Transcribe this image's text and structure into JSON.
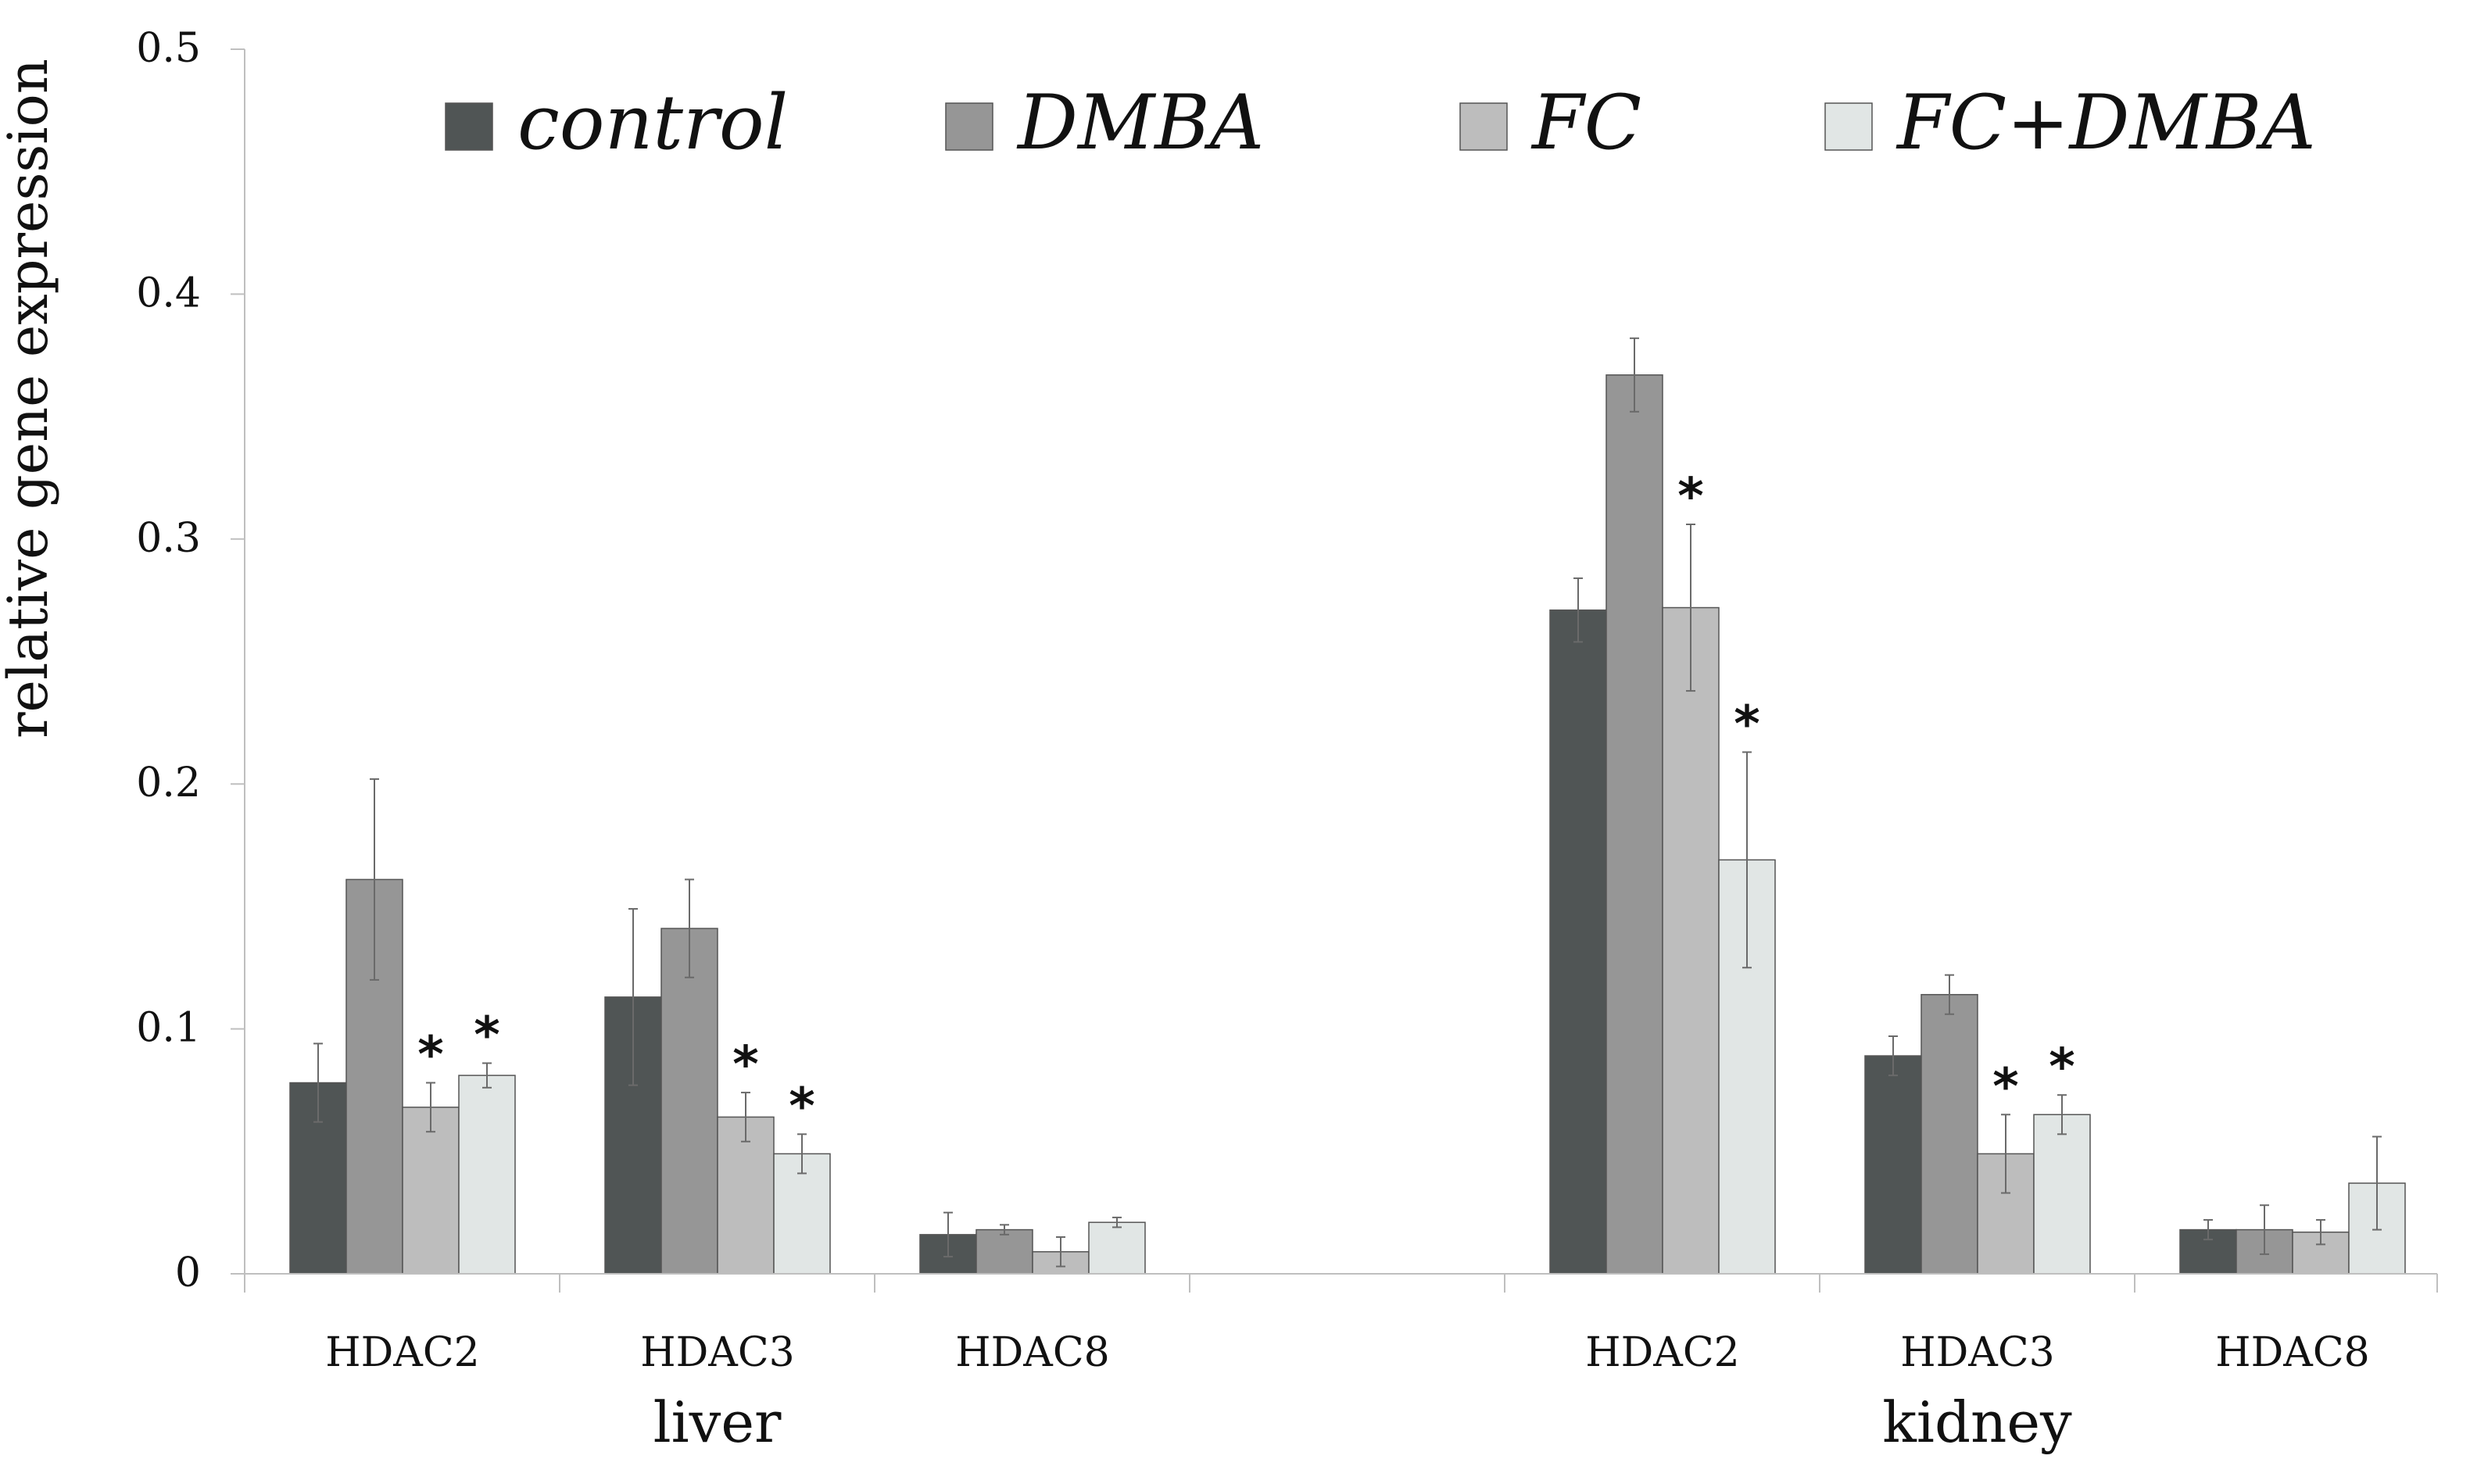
{
  "chart_data": {
    "type": "bar",
    "ylabel": "relative gene expression",
    "ylim": [
      0,
      0.5
    ],
    "yticks": [
      0,
      0.1,
      0.2,
      0.3,
      0.4,
      0.5
    ],
    "ytick_labels": [
      "0",
      "0.1",
      "0.2",
      "0.3",
      "0.4",
      "0.5"
    ],
    "legend": {
      "placement": "top",
      "entries": [
        "control",
        "DMBA",
        "FC",
        "FC+DMBA"
      ]
    },
    "colors": [
      "#505555",
      "#969696",
      "#bdbdbd",
      "#e1e6e5"
    ],
    "groups": [
      {
        "label": "liver",
        "categories": [
          "HDAC2",
          "HDAC3",
          "HDAC8"
        ],
        "series": [
          {
            "name": "control",
            "values": [
              0.078,
              0.113,
              0.016
            ],
            "errors": [
              0.016,
              0.036,
              0.009
            ]
          },
          {
            "name": "DMBA",
            "values": [
              0.161,
              0.141,
              0.018
            ],
            "errors": [
              0.041,
              0.02,
              0.002
            ]
          },
          {
            "name": "FC",
            "values": [
              0.068,
              0.064,
              0.009
            ],
            "errors": [
              0.01,
              0.01,
              0.006
            ]
          },
          {
            "name": "FC+DMBA",
            "values": [
              0.081,
              0.049,
              0.021
            ],
            "errors": [
              0.005,
              0.008,
              0.002
            ]
          }
        ],
        "significance": [
          [
            "",
            "",
            "*",
            "*"
          ],
          [
            "",
            "",
            "*",
            "*"
          ],
          [
            "",
            "",
            "",
            ""
          ]
        ]
      },
      {
        "label": "kidney",
        "categories": [
          "HDAC2",
          "HDAC3",
          "HDAC8"
        ],
        "series": [
          {
            "name": "control",
            "values": [
              0.271,
              0.089,
              0.018
            ],
            "errors": [
              0.013,
              0.008,
              0.004
            ]
          },
          {
            "name": "DMBA",
            "values": [
              0.367,
              0.114,
              0.018
            ],
            "errors": [
              0.015,
              0.008,
              0.01
            ]
          },
          {
            "name": "FC",
            "values": [
              0.272,
              0.049,
              0.017
            ],
            "errors": [
              0.034,
              0.016,
              0.005
            ]
          },
          {
            "name": "FC+DMBA",
            "values": [
              0.169,
              0.065,
              0.037
            ],
            "errors": [
              0.044,
              0.008,
              0.019
            ]
          }
        ],
        "significance": [
          [
            "",
            "",
            "*",
            "*"
          ],
          [
            "",
            "",
            "*",
            "*"
          ],
          [
            "",
            "",
            "",
            ""
          ]
        ]
      }
    ],
    "significance_marker": "*"
  }
}
